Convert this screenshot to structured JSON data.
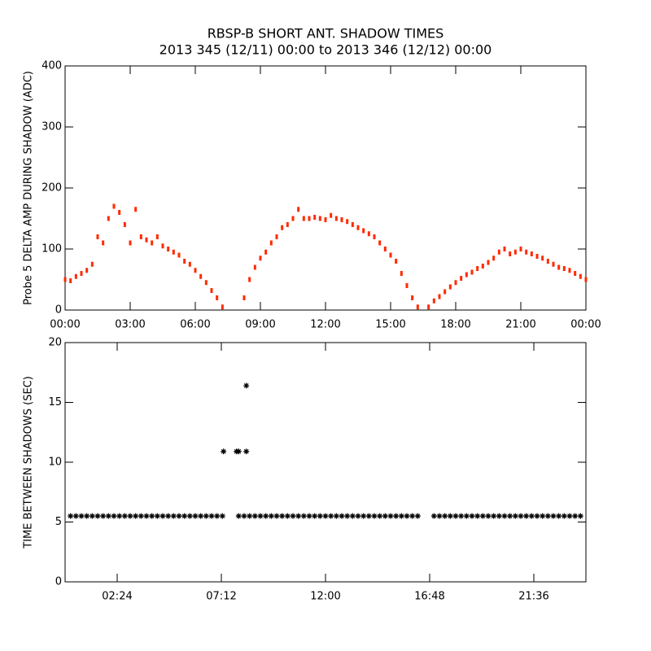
{
  "chart_data": [
    {
      "type": "scatter",
      "title": "RBSP-B SHORT ANT. SHADOW TIMES",
      "subtitle": "2013 345 (12/11) 00:00 to 2013 346 (12/12) 00:00",
      "y_label": "Probe 5 DELTA AMP DURING SHADOW (ADC)",
      "xlim": [
        0,
        24
      ],
      "ylim": [
        0,
        400
      ],
      "xticks": [
        {
          "value": 0,
          "label": "00:00"
        },
        {
          "value": 3,
          "label": "03:00"
        },
        {
          "value": 6,
          "label": "06:00"
        },
        {
          "value": 9,
          "label": "09:00"
        },
        {
          "value": 12,
          "label": "12:00"
        },
        {
          "value": 15,
          "label": "15:00"
        },
        {
          "value": 18,
          "label": "18:00"
        },
        {
          "value": 21,
          "label": "21:00"
        },
        {
          "value": 24,
          "label": "00:00"
        }
      ],
      "yticks": [
        0,
        100,
        200,
        300,
        400
      ],
      "color": "#ff2a00",
      "x": [
        0,
        0.25,
        0.5,
        0.75,
        1,
        1.25,
        1.5,
        1.75,
        2,
        2.25,
        2.5,
        2.75,
        3,
        3.25,
        3.5,
        3.75,
        4,
        4.25,
        4.5,
        4.75,
        5,
        5.25,
        5.5,
        5.75,
        6,
        6.25,
        6.5,
        6.75,
        7,
        7.25,
        8.25,
        8.5,
        8.75,
        9,
        9.25,
        9.5,
        9.75,
        10,
        10.25,
        10.5,
        10.75,
        11,
        11.25,
        11.5,
        11.75,
        12,
        12.25,
        12.5,
        12.75,
        13,
        13.25,
        13.5,
        13.75,
        14,
        14.25,
        14.5,
        14.75,
        15,
        15.25,
        15.5,
        15.75,
        16,
        16.25,
        16.75,
        17,
        17.25,
        17.5,
        17.75,
        18,
        18.25,
        18.5,
        18.75,
        19,
        19.25,
        19.5,
        19.75,
        20,
        20.25,
        20.5,
        20.75,
        21,
        21.25,
        21.5,
        21.75,
        22,
        22.25,
        22.5,
        22.75,
        23,
        23.25,
        23.5,
        23.75,
        24
      ],
      "values": [
        50,
        48,
        55,
        60,
        65,
        75,
        120,
        110,
        150,
        170,
        160,
        140,
        110,
        165,
        120,
        115,
        110,
        120,
        105,
        100,
        95,
        90,
        80,
        75,
        65,
        55,
        45,
        32,
        20,
        5,
        20,
        50,
        70,
        85,
        95,
        110,
        120,
        135,
        140,
        150,
        165,
        150,
        150,
        152,
        150,
        148,
        155,
        150,
        148,
        145,
        140,
        135,
        130,
        125,
        120,
        110,
        100,
        90,
        80,
        60,
        40,
        20,
        5,
        5,
        15,
        22,
        30,
        38,
        45,
        52,
        58,
        62,
        68,
        72,
        78,
        85,
        95,
        100,
        92,
        95,
        100,
        95,
        92,
        88,
        85,
        80,
        75,
        70,
        68,
        65,
        60,
        55,
        50
      ]
    },
    {
      "type": "scatter",
      "y_label": "TIME BETWEEN SHADOWS (SEC)",
      "xlim": [
        0,
        24
      ],
      "ylim": [
        0,
        20
      ],
      "xticks": [
        {
          "value": 2.4,
          "label": "02:24"
        },
        {
          "value": 7.2,
          "label": "07:12"
        },
        {
          "value": 12,
          "label": "12:00"
        },
        {
          "value": 16.8,
          "label": "16:48"
        },
        {
          "value": 21.6,
          "label": "21:36"
        }
      ],
      "yticks": [
        0,
        5,
        10,
        15,
        20
      ],
      "color": "#000000",
      "x": [
        0.25,
        0.5,
        0.75,
        1,
        1.25,
        1.5,
        1.75,
        2,
        2.25,
        2.5,
        2.75,
        3,
        3.25,
        3.5,
        3.75,
        4,
        4.25,
        4.5,
        4.75,
        5,
        5.25,
        5.5,
        5.75,
        6,
        6.25,
        6.5,
        6.75,
        7,
        7.25,
        8,
        8.25,
        8.5,
        8.75,
        9,
        9.25,
        9.5,
        9.75,
        10,
        10.25,
        10.5,
        10.75,
        11,
        11.25,
        11.5,
        11.75,
        12,
        12.25,
        12.5,
        12.75,
        13,
        13.25,
        13.5,
        13.75,
        14,
        14.25,
        14.5,
        14.75,
        15,
        15.25,
        15.5,
        15.75,
        16,
        16.25,
        17,
        17.25,
        17.5,
        17.75,
        18,
        18.25,
        18.5,
        18.75,
        19,
        19.25,
        19.5,
        19.75,
        20,
        20.25,
        20.5,
        20.75,
        21,
        21.25,
        21.5,
        21.75,
        22,
        22.25,
        22.5,
        22.75,
        23,
        23.25,
        23.5,
        23.75,
        7.3,
        7.9,
        8,
        8.35,
        8.35
      ],
      "values": [
        5.5,
        5.5,
        5.5,
        5.5,
        5.5,
        5.5,
        5.5,
        5.5,
        5.5,
        5.5,
        5.5,
        5.5,
        5.5,
        5.5,
        5.5,
        5.5,
        5.5,
        5.5,
        5.5,
        5.5,
        5.5,
        5.5,
        5.5,
        5.5,
        5.5,
        5.5,
        5.5,
        5.5,
        5.5,
        5.5,
        5.5,
        5.5,
        5.5,
        5.5,
        5.5,
        5.5,
        5.5,
        5.5,
        5.5,
        5.5,
        5.5,
        5.5,
        5.5,
        5.5,
        5.5,
        5.5,
        5.5,
        5.5,
        5.5,
        5.5,
        5.5,
        5.5,
        5.5,
        5.5,
        5.5,
        5.5,
        5.5,
        5.5,
        5.5,
        5.5,
        5.5,
        5.5,
        5.5,
        5.5,
        5.5,
        5.5,
        5.5,
        5.5,
        5.5,
        5.5,
        5.5,
        5.5,
        5.5,
        5.5,
        5.5,
        5.5,
        5.5,
        5.5,
        5.5,
        5.5,
        5.5,
        5.5,
        5.5,
        5.5,
        5.5,
        5.5,
        5.5,
        5.5,
        5.5,
        5.5,
        5.5,
        10.9,
        10.9,
        10.9,
        10.9,
        16.4
      ]
    }
  ]
}
